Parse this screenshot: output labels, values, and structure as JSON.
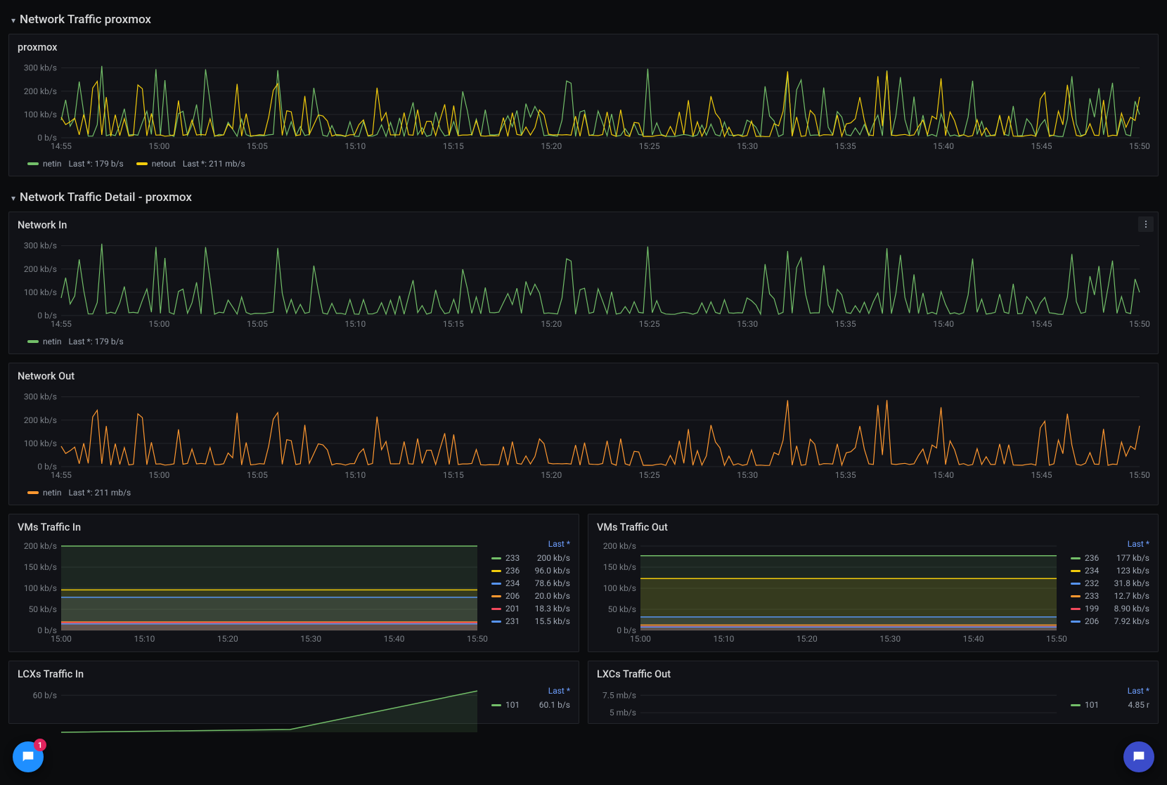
{
  "colors": {
    "bg": "#0b0c0e",
    "panel": "#111217",
    "border": "#24262b",
    "text": "#ccccdc",
    "muted": "#7b8087",
    "grid": "#24262b",
    "green": "#73bf69",
    "yellow": "#f2cc0c",
    "orange": "#ff9830",
    "blue": "#5794f2",
    "red": "#f2495c",
    "purple": "#b877d9",
    "accentLink": "#6e9fff",
    "chatLeft": "#1f8fff",
    "chatRight": "#3b4cca",
    "badge": "#e0245e"
  },
  "sections": {
    "top": {
      "title": "Network Traffic proxmox"
    },
    "detail": {
      "title": "Network Traffic Detail - proxmox"
    }
  },
  "xaxis": {
    "ticks": [
      "14:55",
      "15:00",
      "15:05",
      "15:10",
      "15:15",
      "15:20",
      "15:25",
      "15:30",
      "15:35",
      "15:40",
      "15:45",
      "15:50"
    ]
  },
  "vm_xaxis": {
    "ticks": [
      "15:00",
      "15:10",
      "15:20",
      "15:30",
      "15:40",
      "15:50"
    ]
  },
  "yaxis_kb": {
    "ticks": [
      {
        "v": 0,
        "label": "0 b/s"
      },
      {
        "v": 100,
        "label": "100 kb/s"
      },
      {
        "v": 200,
        "label": "200 kb/s"
      },
      {
        "v": 300,
        "label": "300 kb/s"
      }
    ],
    "max": 320
  },
  "panels": {
    "proxmox": {
      "title": "proxmox",
      "type": "line",
      "series": [
        {
          "name": "netin",
          "color": "#73bf69",
          "last": "179 b/s",
          "seed": 17
        },
        {
          "name": "netout",
          "color": "#f2cc0c",
          "last": "211 mb/s",
          "seed": 41
        }
      ]
    },
    "netin": {
      "title": "Network In",
      "type": "line",
      "menu": true,
      "series": [
        {
          "name": "netin",
          "color": "#73bf69",
          "last": "179 b/s",
          "seed": 17
        }
      ]
    },
    "netout": {
      "title": "Network Out",
      "type": "line",
      "series": [
        {
          "name": "netin",
          "color": "#ff9830",
          "last": "211 mb/s",
          "seed": 41
        }
      ]
    },
    "vms_in": {
      "title": "VMs Traffic In",
      "type": "stacked",
      "legend_header": "Last *",
      "series": [
        {
          "name": "233",
          "color": "#73bf69",
          "val": "200 kb/s",
          "y": 200
        },
        {
          "name": "236",
          "color": "#f2cc0c",
          "val": "96.0 kb/s",
          "y": 96
        },
        {
          "name": "234",
          "color": "#5794f2",
          "val": "78.6 kb/s",
          "y": 78.6
        },
        {
          "name": "206",
          "color": "#ff9830",
          "val": "20.0 kb/s",
          "y": 20
        },
        {
          "name": "201",
          "color": "#f2495c",
          "val": "18.3 kb/s",
          "y": 18.3
        },
        {
          "name": "231",
          "color": "#5794f2",
          "val": "15.5 kb/s",
          "y": 15.5
        }
      ],
      "ymax": 210,
      "yticks": [
        {
          "v": 0,
          "label": "0 b/s"
        },
        {
          "v": 50,
          "label": "50 kb/s"
        },
        {
          "v": 100,
          "label": "100 kb/s"
        },
        {
          "v": 150,
          "label": "150 kb/s"
        },
        {
          "v": 200,
          "label": "200 kb/s"
        }
      ]
    },
    "vms_out": {
      "title": "VMs Traffic Out",
      "type": "stacked",
      "legend_header": "Last *",
      "series": [
        {
          "name": "236",
          "color": "#73bf69",
          "val": "177 kb/s",
          "y": 177
        },
        {
          "name": "234",
          "color": "#f2cc0c",
          "val": "123 kb/s",
          "y": 123
        },
        {
          "name": "232",
          "color": "#5794f2",
          "val": "31.8 kb/s",
          "y": 31.8
        },
        {
          "name": "233",
          "color": "#ff9830",
          "val": "12.7 kb/s",
          "y": 12.7
        },
        {
          "name": "199",
          "color": "#f2495c",
          "val": "8.90 kb/s",
          "y": 8.9
        },
        {
          "name": "206",
          "color": "#5794f2",
          "val": "7.92 kb/s",
          "y": 7.92
        }
      ],
      "ymax": 210,
      "yticks": [
        {
          "v": 0,
          "label": "0 b/s"
        },
        {
          "v": 50,
          "label": "50 kb/s"
        },
        {
          "v": 100,
          "label": "100 kb/s"
        },
        {
          "v": 150,
          "label": "150 kb/s"
        },
        {
          "v": 200,
          "label": "200 kb/s"
        }
      ]
    },
    "lxc_in": {
      "title": "LCXs Traffic In",
      "legend_header": "Last *",
      "series": [
        {
          "name": "101",
          "color": "#73bf69",
          "val": "60.1 b/s"
        }
      ],
      "yticks": [
        {
          "v": 60,
          "label": "60 b/s"
        }
      ]
    },
    "lxc_out": {
      "title": "LXCs Traffic Out",
      "legend_header": "Last *",
      "series": [
        {
          "name": "101",
          "color": "#73bf69",
          "val": "4.85 r"
        }
      ],
      "yticks": [
        {
          "v": 7.5,
          "label": "7.5 mb/s"
        },
        {
          "v": 5,
          "label": "5 mb/s"
        }
      ]
    }
  },
  "chat": {
    "badge": "1"
  }
}
